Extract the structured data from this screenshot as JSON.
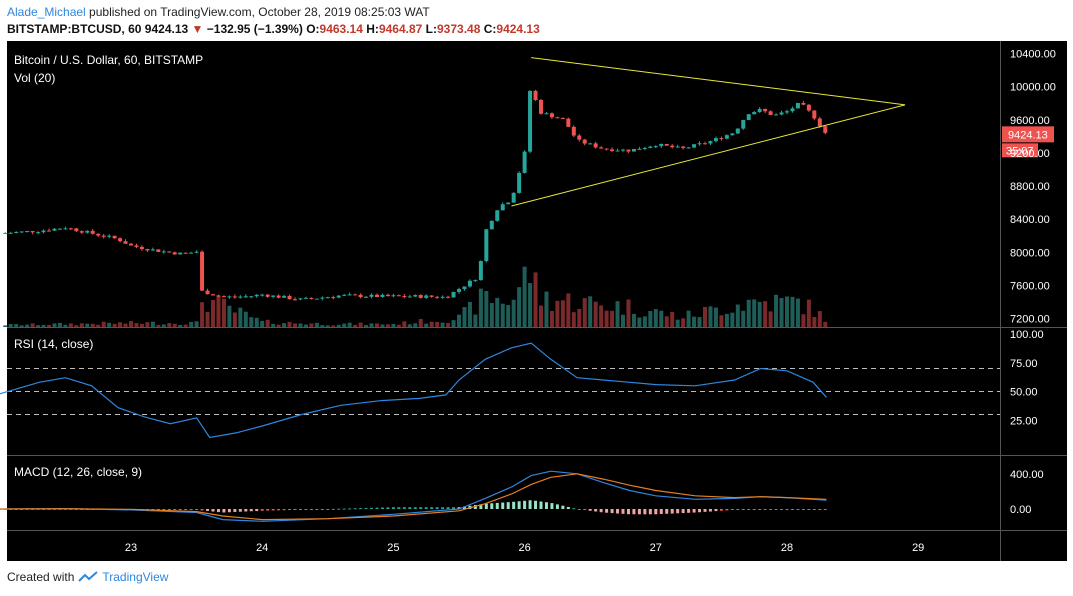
{
  "header": {
    "author": "Alade_Michael",
    "published_text": " published on TradingView.com, October 28, 2019 08:25:03 WAT",
    "symbol": "BITSTAMP:BTCUSD, 60",
    "last": "9424.13",
    "change": "−132.95 (−1.39%)",
    "open_label": "O:",
    "open": "9463.14",
    "high_label": "H:",
    "high": "9464.87",
    "low_label": "L:",
    "low": "9373.48",
    "close_label": "C:",
    "close": "9424.13"
  },
  "footer": {
    "created_with": "Created with",
    "brand": "TradingView"
  },
  "colors": {
    "background": "#000000",
    "up": "#26a69a",
    "down": "#ef5350",
    "up_vol": "#1f5e58",
    "down_vol": "#7a2a2a",
    "rsi": "#2e86de",
    "macd": "#2e86de",
    "signal": "#e67e22",
    "triangle": "#e8e83a",
    "grid_dash": "#bdbdbd",
    "price_tag": "#ef5350"
  },
  "chart_data": {
    "type": "candlestick",
    "title": "Bitcoin / U.S. Dollar, 60, BITSTAMP",
    "volume_label": "Vol (20)",
    "x_ticks": [
      "23",
      "24",
      "25",
      "26",
      "27",
      "28",
      "29"
    ],
    "price_axis": {
      "ticks": [
        "10400.00",
        "10000.00",
        "9600.00",
        "9200.00",
        "8800.00",
        "8400.00",
        "8000.00",
        "7600.00",
        "7200.00"
      ],
      "range": [
        7100,
        10550
      ]
    },
    "last_price_tag": "9424.13",
    "countdown_tag": "35:07",
    "price_path": [
      [
        "22.0",
        8230
      ],
      [
        "22.3",
        8260
      ],
      [
        "22.5",
        8300
      ],
      [
        "22.7",
        8230
      ],
      [
        "22.9",
        8160
      ],
      [
        "23.0",
        8080
      ],
      [
        "23.2",
        8020
      ],
      [
        "23.4",
        7980
      ],
      [
        "23.5",
        8010
      ],
      [
        "23.52",
        7540
      ],
      [
        "23.7",
        7460
      ],
      [
        "23.9",
        7470
      ],
      [
        "24.0",
        7490
      ],
      [
        "24.3",
        7430
      ],
      [
        "24.6",
        7480
      ],
      [
        "24.9",
        7470
      ],
      [
        "25.2",
        7470
      ],
      [
        "25.4",
        7460
      ],
      [
        "25.5",
        7560
      ],
      [
        "25.65",
        7710
      ],
      [
        "25.7",
        8250
      ],
      [
        "25.8",
        8550
      ],
      [
        "25.9",
        8640
      ],
      [
        "26.0",
        9200
      ],
      [
        "26.05",
        10100
      ],
      [
        "26.1",
        9700
      ],
      [
        "26.3",
        9600
      ],
      [
        "26.4",
        9350
      ],
      [
        "26.6",
        9250
      ],
      [
        "26.8",
        9230
      ],
      [
        "27.0",
        9300
      ],
      [
        "27.2",
        9250
      ],
      [
        "27.4",
        9330
      ],
      [
        "27.6",
        9450
      ],
      [
        "27.7",
        9680
      ],
      [
        "27.8",
        9720
      ],
      [
        "27.9",
        9650
      ],
      [
        "28.0",
        9700
      ],
      [
        "28.1",
        9800
      ],
      [
        "28.2",
        9650
      ],
      [
        "28.3",
        9424
      ]
    ],
    "volume": [
      [
        "22.0",
        2
      ],
      [
        "22.5",
        3
      ],
      [
        "23.0",
        4
      ],
      [
        "23.5",
        4
      ],
      [
        "23.52",
        30
      ],
      [
        "24.0",
        5
      ],
      [
        "24.5",
        3
      ],
      [
        "25.0",
        3
      ],
      [
        "25.5",
        9
      ],
      [
        "25.7",
        30
      ],
      [
        "25.9",
        26
      ],
      [
        "26.05",
        60
      ],
      [
        "26.1",
        30
      ],
      [
        "26.4",
        25
      ],
      [
        "26.8",
        20
      ],
      [
        "27.2",
        10
      ],
      [
        "27.7",
        25
      ],
      [
        "28.1",
        25
      ],
      [
        "28.3",
        8
      ]
    ],
    "triangle": {
      "upper": [
        [
          "26.05",
          10350
        ],
        [
          "28.9",
          9780
        ]
      ],
      "lower": [
        [
          "25.9",
          8560
        ],
        [
          "28.9",
          9780
        ]
      ]
    },
    "rsi": {
      "label": "RSI (14, close)",
      "ticks": [
        "100.00",
        "75.00",
        "50.00",
        "25.00"
      ],
      "levels": [
        70,
        50,
        30
      ],
      "values": [
        [
          "22.0",
          48
        ],
        [
          "22.3",
          58
        ],
        [
          "22.5",
          62
        ],
        [
          "22.7",
          55
        ],
        [
          "22.9",
          36
        ],
        [
          "23.1",
          28
        ],
        [
          "23.3",
          22
        ],
        [
          "23.5",
          27
        ],
        [
          "23.6",
          10
        ],
        [
          "23.8",
          14
        ],
        [
          "24.0",
          20
        ],
        [
          "24.3",
          30
        ],
        [
          "24.6",
          38
        ],
        [
          "24.9",
          42
        ],
        [
          "25.2",
          44
        ],
        [
          "25.4",
          47
        ],
        [
          "25.5",
          60
        ],
        [
          "25.7",
          78
        ],
        [
          "25.9",
          88
        ],
        [
          "26.05",
          92
        ],
        [
          "26.2",
          78
        ],
        [
          "26.4",
          62
        ],
        [
          "26.6",
          60
        ],
        [
          "26.8",
          58
        ],
        [
          "27.0",
          56
        ],
        [
          "27.3",
          55
        ],
        [
          "27.6",
          60
        ],
        [
          "27.8",
          70
        ],
        [
          "28.0",
          68
        ],
        [
          "28.2",
          58
        ],
        [
          "28.3",
          45
        ]
      ]
    },
    "macd": {
      "label": "MACD (12, 26, close, 9)",
      "ticks": [
        "400.00",
        "0.00"
      ],
      "macd": [
        [
          "22.0",
          0
        ],
        [
          "22.5",
          5
        ],
        [
          "23.0",
          -10
        ],
        [
          "23.5",
          -40
        ],
        [
          "23.7",
          -120
        ],
        [
          "24.0",
          -140
        ],
        [
          "24.5",
          -110
        ],
        [
          "25.0",
          -60
        ],
        [
          "25.5",
          0
        ],
        [
          "25.7",
          120
        ],
        [
          "25.9",
          250
        ],
        [
          "26.05",
          380
        ],
        [
          "26.2",
          430
        ],
        [
          "26.4",
          400
        ],
        [
          "26.6",
          300
        ],
        [
          "26.8",
          210
        ],
        [
          "27.0",
          150
        ],
        [
          "27.3",
          110
        ],
        [
          "27.6",
          120
        ],
        [
          "27.8",
          140
        ],
        [
          "28.0",
          130
        ],
        [
          "28.3",
          100
        ]
      ],
      "signal": [
        [
          "22.0",
          0
        ],
        [
          "22.5",
          3
        ],
        [
          "23.0",
          -5
        ],
        [
          "23.5",
          -30
        ],
        [
          "23.7",
          -80
        ],
        [
          "24.0",
          -120
        ],
        [
          "24.5",
          -110
        ],
        [
          "25.0",
          -80
        ],
        [
          "25.5",
          -20
        ],
        [
          "25.7",
          60
        ],
        [
          "25.9",
          170
        ],
        [
          "26.05",
          280
        ],
        [
          "26.2",
          360
        ],
        [
          "26.4",
          400
        ],
        [
          "26.6",
          340
        ],
        [
          "26.8",
          270
        ],
        [
          "27.0",
          210
        ],
        [
          "27.3",
          150
        ],
        [
          "27.6",
          130
        ],
        [
          "27.8",
          140
        ],
        [
          "28.0",
          130
        ],
        [
          "28.3",
          110
        ]
      ]
    }
  }
}
